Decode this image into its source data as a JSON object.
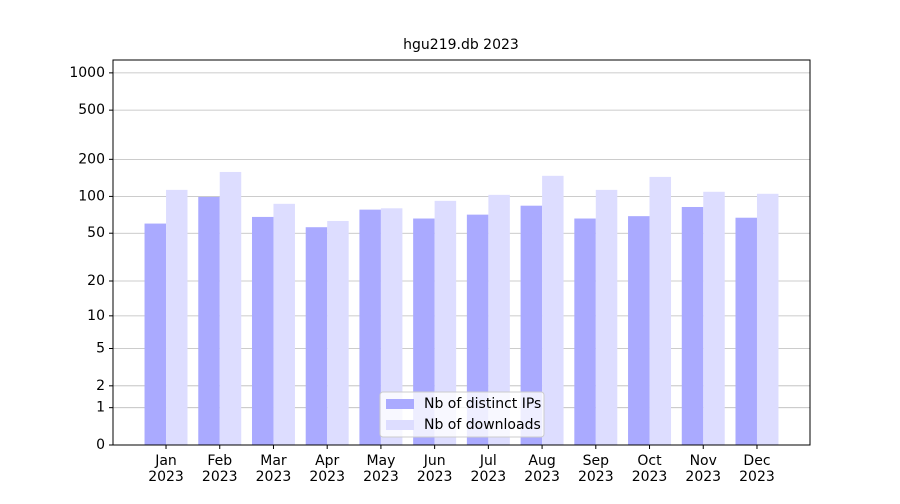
{
  "chart_data": {
    "type": "bar",
    "title": "hgu219.db 2023",
    "categories": [
      [
        "Jan",
        "2023"
      ],
      [
        "Feb",
        "2023"
      ],
      [
        "Mar",
        "2023"
      ],
      [
        "Apr",
        "2023"
      ],
      [
        "May",
        "2023"
      ],
      [
        "Jun",
        "2023"
      ],
      [
        "Jul",
        "2023"
      ],
      [
        "Aug",
        "2023"
      ],
      [
        "Sep",
        "2023"
      ],
      [
        "Oct",
        "2023"
      ],
      [
        "Nov",
        "2023"
      ],
      [
        "Dec",
        "2023"
      ]
    ],
    "series": [
      {
        "name": "Nb of distinct IPs",
        "color": "#aaaaff",
        "values": [
          60,
          99,
          68,
          56,
          78,
          66,
          71,
          84,
          66,
          69,
          82,
          67
        ]
      },
      {
        "name": "Nb of downloads",
        "color": "#ddddff",
        "values": [
          113,
          158,
          87,
          63,
          80,
          92,
          103,
          147,
          113,
          144,
          109,
          105
        ]
      }
    ],
    "y_scale": "log1p",
    "ylim": [
      0,
      1270
    ],
    "yticks": [
      0,
      1,
      2,
      5,
      10,
      20,
      50,
      100,
      200,
      500,
      1000
    ],
    "grid": true,
    "legend": "lower center"
  }
}
